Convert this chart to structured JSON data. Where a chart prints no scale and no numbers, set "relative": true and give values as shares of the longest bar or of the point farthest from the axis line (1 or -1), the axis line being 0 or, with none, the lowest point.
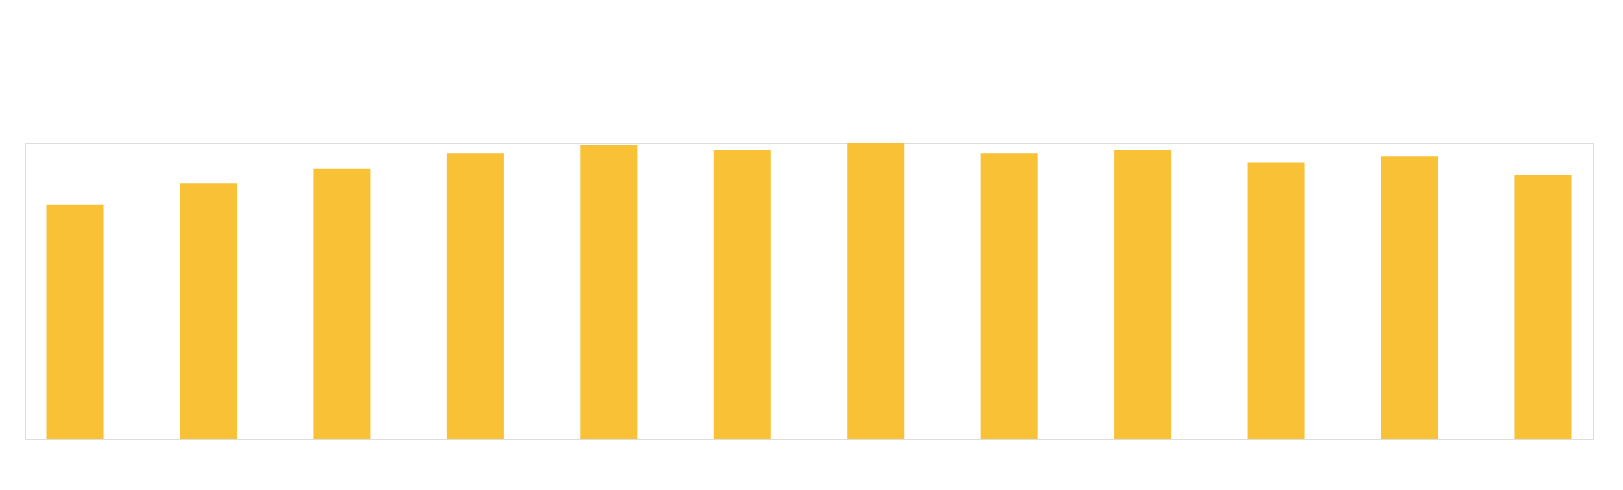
{
  "chart_data": {
    "type": "bar",
    "relative": true,
    "categories": [
      null,
      null,
      null,
      null,
      null,
      null,
      null,
      null,
      null,
      null,
      null,
      null
    ],
    "values": [
      0.791,
      0.864,
      0.913,
      0.965,
      0.993,
      0.976,
      1,
      0.965,
      0.976,
      0.934,
      0.955,
      0.892
    ],
    "color": "#f8c136",
    "grid": false
  }
}
